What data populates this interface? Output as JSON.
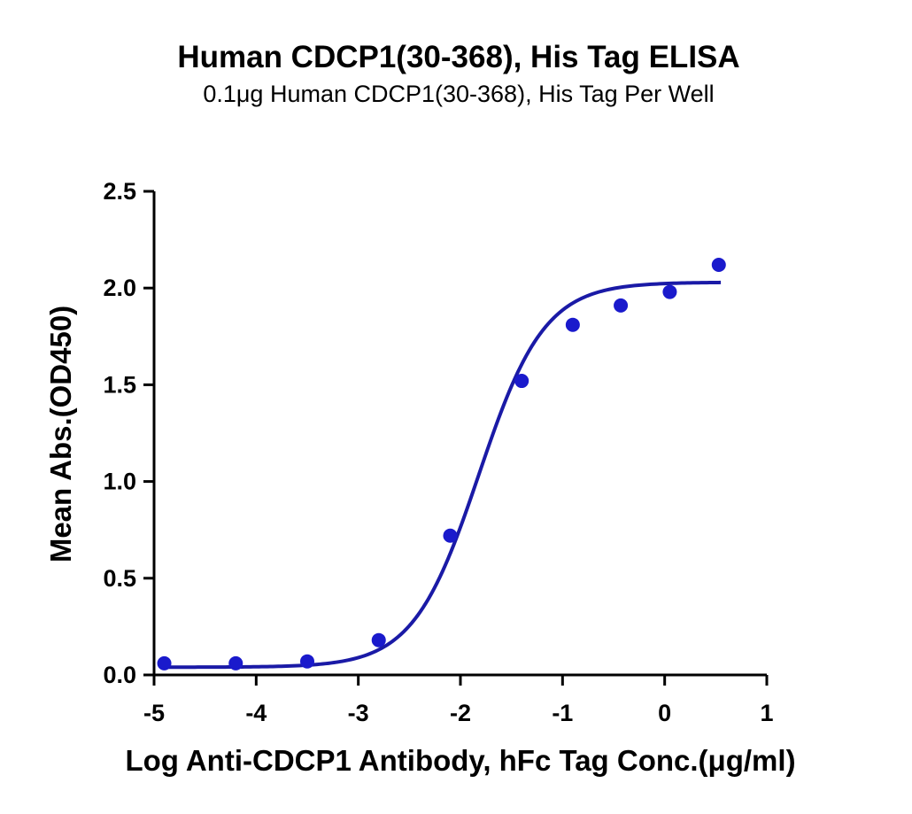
{
  "chart_data": {
    "type": "scatter",
    "title": "Human CDCP1(30-368), His Tag ELISA",
    "subtitle": "0.1μg Human CDCP1(30-368), His Tag Per Well",
    "xlabel": "Log Anti-CDCP1 Antibody, hFc Tag Conc.(μg/ml)",
    "ylabel": "Mean Abs.(OD450)",
    "xlim": [
      -5,
      1
    ],
    "ylim": [
      0,
      2.5
    ],
    "x_ticks": [
      "-5",
      "-4",
      "-3",
      "-2",
      "-1",
      "0",
      "1"
    ],
    "y_ticks": [
      "0.0",
      "0.5",
      "1.0",
      "1.5",
      "2.0",
      "2.5"
    ],
    "grid": false,
    "series": [
      {
        "points": [
          {
            "x": -4.9,
            "y": 0.06
          },
          {
            "x": -4.2,
            "y": 0.06
          },
          {
            "x": -3.5,
            "y": 0.07
          },
          {
            "x": -2.8,
            "y": 0.18
          },
          {
            "x": -2.1,
            "y": 0.72
          },
          {
            "x": -1.4,
            "y": 1.52
          },
          {
            "x": -0.9,
            "y": 1.81
          },
          {
            "x": -0.43,
            "y": 1.91
          },
          {
            "x": 0.05,
            "y": 1.98
          },
          {
            "x": 0.53,
            "y": 2.12
          }
        ],
        "fit": {
          "bottom": 0.04,
          "top": 2.03,
          "log_ec50": -1.82,
          "hill_slope": 1.35,
          "x_range": [
            -4.9,
            0.55
          ]
        },
        "color": "#1a1acc"
      }
    ]
  }
}
